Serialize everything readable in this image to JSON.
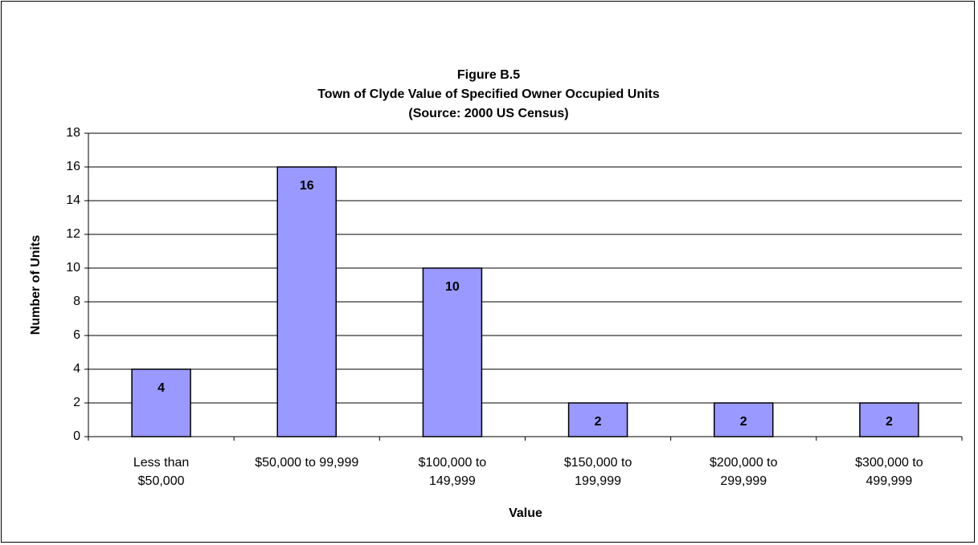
{
  "chart_data": {
    "type": "bar",
    "title": [
      "Figure B.5",
      "Town of Clyde Value of Specified Owner Occupied Units",
      "(Source:  2000 US Census)"
    ],
    "xlabel": "Value",
    "ylabel": "Number of Units",
    "categories": [
      [
        "Less than",
        "$50,000"
      ],
      [
        "$50,000 to 99,999"
      ],
      [
        "$100,000 to",
        "149,999"
      ],
      [
        "$150,000 to",
        "199,999"
      ],
      [
        "$200,000 to",
        "299,999"
      ],
      [
        "$300,000 to",
        "499,999"
      ]
    ],
    "values": [
      4,
      16,
      10,
      2,
      2,
      2
    ],
    "color": "#9999ff",
    "ylim": [
      0,
      18
    ],
    "yticks": [
      0,
      2,
      4,
      6,
      8,
      10,
      12,
      14,
      16,
      18
    ],
    "grid": true
  }
}
